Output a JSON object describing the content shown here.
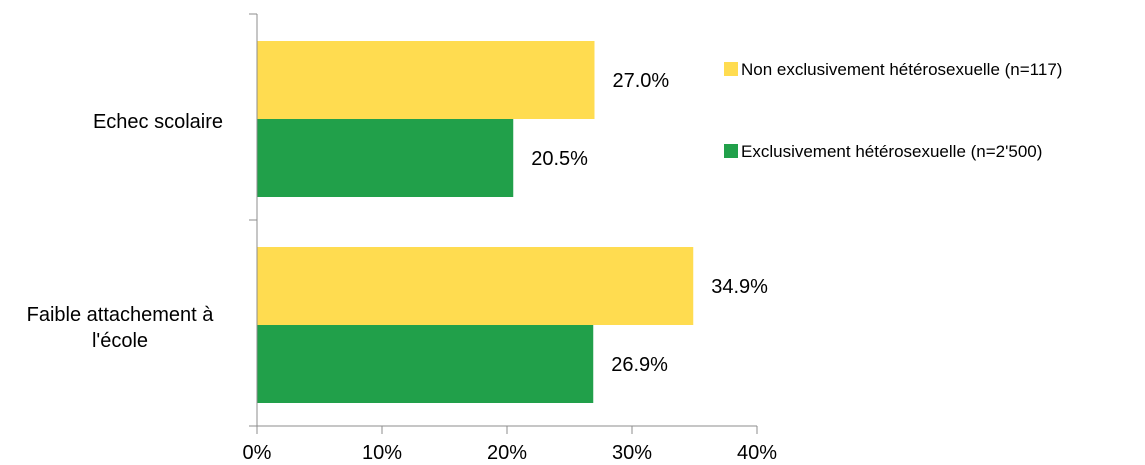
{
  "chart_data": {
    "type": "bar",
    "orientation": "horizontal",
    "categories": [
      "Echec scolaire",
      "Faible attachement à l'école"
    ],
    "series": [
      {
        "name": "Non exclusivement hétérosexuelle (n=117)",
        "values": [
          27.0,
          34.9
        ],
        "color": "#FFDC50"
      },
      {
        "name": "Exclusivement hétérosexuelle (n=2'500)",
        "values": [
          20.5,
          26.9
        ],
        "color": "#21A04A"
      }
    ],
    "data_labels": [
      [
        "27.0%",
        "34.9%"
      ],
      [
        "20.5%",
        "26.9%"
      ]
    ],
    "x_ticks": [
      "0%",
      "10%",
      "20%",
      "30%",
      "40%"
    ],
    "xlim": [
      0,
      40
    ],
    "grid": false,
    "legend_position": "right"
  }
}
